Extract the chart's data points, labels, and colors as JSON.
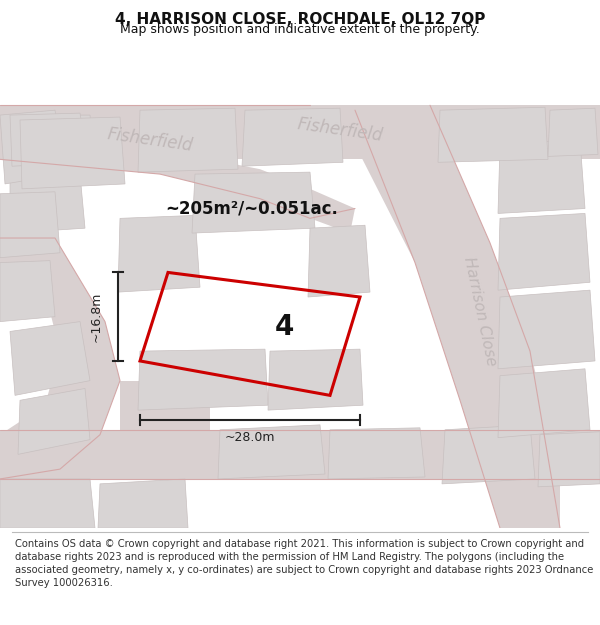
{
  "title": "4, HARRISON CLOSE, ROCHDALE, OL12 7QP",
  "subtitle": "Map shows position and indicative extent of the property.",
  "footer": "Contains OS data © Crown copyright and database right 2021. This information is subject to Crown copyright and database rights 2023 and is reproduced with the permission of HM Land Registry. The polygons (including the associated geometry, namely x, y co-ordinates) are subject to Crown copyright and database rights 2023 Ordnance Survey 100026316.",
  "bg_color": "#f2efef",
  "map_bg": "#eeeaea",
  "road_fill": "#d8d0d0",
  "bldg_fill": "#d8d4d4",
  "bldg_edge": "#c8c0c0",
  "highlight_color": "#cc0000",
  "highlight_lw": 2.2,
  "plot_label": "4",
  "area_label": "~205m²/~0.051ac.",
  "width_label": "~28.0m",
  "height_label": "~16.8m",
  "title_fontsize": 11,
  "subtitle_fontsize": 9,
  "footer_fontsize": 7.2,
  "street_color": "#c0b8b8",
  "dim_color": "#222222",
  "label_color": "#444444"
}
